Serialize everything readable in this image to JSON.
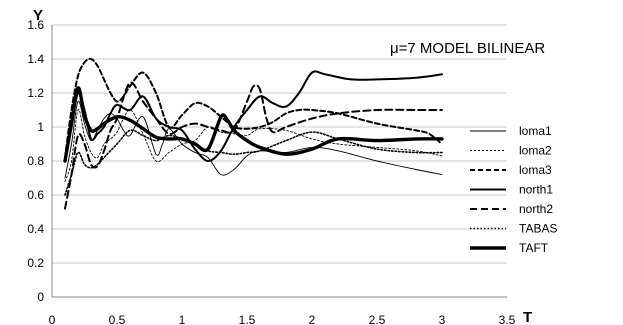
{
  "chart_data": {
    "type": "line",
    "title": "",
    "annotation": "μ=7  MODEL BILINEAR",
    "xlabel": "T",
    "ylabel": "Y",
    "xlim": [
      0,
      3.5
    ],
    "ylim": [
      0,
      1.6
    ],
    "xticks": [
      "0",
      "0.5",
      "1",
      "1.5",
      "2",
      "2.5",
      "3",
      "3.5"
    ],
    "yticks": [
      "0",
      "0.2",
      "0.4",
      "0.6",
      "0.8",
      "1",
      "1.2",
      "1.4",
      "1.6"
    ],
    "grid": "horizontal",
    "legend": "right",
    "series": [
      {
        "name": "loma1",
        "style": "thin-solid",
        "points": [
          [
            0.1,
            0.7
          ],
          [
            0.15,
            0.9
          ],
          [
            0.2,
            1.15
          ],
          [
            0.25,
            1.02
          ],
          [
            0.3,
            0.92
          ],
          [
            0.35,
            0.98
          ],
          [
            0.4,
            1.05
          ],
          [
            0.45,
            1.08
          ],
          [
            0.5,
            1.05
          ],
          [
            0.55,
            0.98
          ],
          [
            0.6,
            0.95
          ],
          [
            0.7,
            1.06
          ],
          [
            0.8,
            0.84
          ],
          [
            0.85,
            0.9
          ],
          [
            0.9,
            0.99
          ],
          [
            1.0,
            0.9
          ],
          [
            1.1,
            0.85
          ],
          [
            1.2,
            0.82
          ],
          [
            1.3,
            0.72
          ],
          [
            1.4,
            0.75
          ],
          [
            1.5,
            0.83
          ],
          [
            1.6,
            0.86
          ],
          [
            1.8,
            0.85
          ],
          [
            2.0,
            0.88
          ],
          [
            2.2,
            0.86
          ],
          [
            2.5,
            0.8
          ],
          [
            2.8,
            0.75
          ],
          [
            3.0,
            0.72
          ]
        ]
      },
      {
        "name": "loma2",
        "style": "thin-dotted",
        "points": [
          [
            0.1,
            0.68
          ],
          [
            0.15,
            0.8
          ],
          [
            0.2,
            1.1
          ],
          [
            0.25,
            0.95
          ],
          [
            0.3,
            0.85
          ],
          [
            0.35,
            0.82
          ],
          [
            0.4,
            0.9
          ],
          [
            0.45,
            0.93
          ],
          [
            0.5,
            0.97
          ],
          [
            0.6,
            1.1
          ],
          [
            0.7,
            0.96
          ],
          [
            0.8,
            0.8
          ],
          [
            0.9,
            0.85
          ],
          [
            1.0,
            0.9
          ],
          [
            1.1,
            0.92
          ],
          [
            1.2,
            1.0
          ],
          [
            1.3,
            0.97
          ],
          [
            1.4,
            0.96
          ],
          [
            1.5,
            0.95
          ],
          [
            1.6,
            0.99
          ],
          [
            1.8,
            0.98
          ],
          [
            2.0,
            0.93
          ],
          [
            2.2,
            0.9
          ],
          [
            2.5,
            0.88
          ],
          [
            2.8,
            0.86
          ],
          [
            3.0,
            0.83
          ]
        ]
      },
      {
        "name": "loma3",
        "style": "dashed",
        "points": [
          [
            0.1,
            0.82
          ],
          [
            0.15,
            1.1
          ],
          [
            0.2,
            1.3
          ],
          [
            0.25,
            1.38
          ],
          [
            0.3,
            1.4
          ],
          [
            0.35,
            1.36
          ],
          [
            0.4,
            1.28
          ],
          [
            0.45,
            1.2
          ],
          [
            0.5,
            1.15
          ],
          [
            0.55,
            1.18
          ],
          [
            0.6,
            1.24
          ],
          [
            0.7,
            1.32
          ],
          [
            0.8,
            1.2
          ],
          [
            0.9,
            1.0
          ],
          [
            1.0,
            1.07
          ],
          [
            1.1,
            1.14
          ],
          [
            1.2,
            1.12
          ],
          [
            1.3,
            1.06
          ],
          [
            1.4,
            1.0
          ],
          [
            1.5,
            0.99
          ],
          [
            1.6,
            1.0
          ],
          [
            1.7,
            1.03
          ],
          [
            1.8,
            1.08
          ],
          [
            1.9,
            1.1
          ],
          [
            2.0,
            1.1
          ],
          [
            2.2,
            1.08
          ],
          [
            2.5,
            1.02
          ],
          [
            2.8,
            0.98
          ],
          [
            2.9,
            0.96
          ],
          [
            3.0,
            0.9
          ]
        ]
      },
      {
        "name": "north1",
        "style": "solid",
        "points": [
          [
            0.1,
            0.82
          ],
          [
            0.15,
            1.0
          ],
          [
            0.2,
            1.2
          ],
          [
            0.25,
            1.1
          ],
          [
            0.3,
            0.93
          ],
          [
            0.35,
            0.96
          ],
          [
            0.4,
            1.0
          ],
          [
            0.45,
            1.08
          ],
          [
            0.5,
            1.13
          ],
          [
            0.6,
            1.1
          ],
          [
            0.7,
            1.18
          ],
          [
            0.8,
            1.05
          ],
          [
            0.9,
            1.0
          ],
          [
            1.0,
            0.98
          ],
          [
            1.1,
            0.87
          ],
          [
            1.2,
            0.8
          ],
          [
            1.3,
            0.86
          ],
          [
            1.4,
            1.0
          ],
          [
            1.5,
            1.1
          ],
          [
            1.6,
            1.18
          ],
          [
            1.7,
            1.14
          ],
          [
            1.8,
            1.12
          ],
          [
            1.9,
            1.2
          ],
          [
            2.0,
            1.32
          ],
          [
            2.1,
            1.31
          ],
          [
            2.3,
            1.28
          ],
          [
            2.5,
            1.28
          ],
          [
            2.8,
            1.29
          ],
          [
            3.0,
            1.31
          ]
        ]
      },
      {
        "name": "north2",
        "style": "dashed-long",
        "points": [
          [
            0.1,
            0.52
          ],
          [
            0.15,
            0.72
          ],
          [
            0.2,
            0.95
          ],
          [
            0.25,
            0.9
          ],
          [
            0.3,
            0.78
          ],
          [
            0.35,
            0.77
          ],
          [
            0.4,
            0.86
          ],
          [
            0.45,
            0.98
          ],
          [
            0.5,
            1.05
          ],
          [
            0.6,
            1.26
          ],
          [
            0.7,
            1.15
          ],
          [
            0.8,
            1.05
          ],
          [
            0.9,
            0.96
          ],
          [
            1.0,
            1.0
          ],
          [
            1.1,
            1.02
          ],
          [
            1.2,
            1.0
          ],
          [
            1.3,
            0.98
          ],
          [
            1.4,
            0.98
          ],
          [
            1.5,
            1.15
          ],
          [
            1.55,
            1.24
          ],
          [
            1.6,
            1.22
          ],
          [
            1.65,
            1.05
          ],
          [
            1.7,
            0.97
          ],
          [
            1.8,
            1.0
          ],
          [
            2.0,
            1.05
          ],
          [
            2.2,
            1.08
          ],
          [
            2.5,
            1.1
          ],
          [
            2.8,
            1.1
          ],
          [
            3.0,
            1.1
          ]
        ]
      },
      {
        "name": "TABAS",
        "style": "dotted",
        "points": [
          [
            0.1,
            0.6
          ],
          [
            0.15,
            0.72
          ],
          [
            0.2,
            0.85
          ],
          [
            0.25,
            0.78
          ],
          [
            0.3,
            0.76
          ],
          [
            0.35,
            0.78
          ],
          [
            0.4,
            0.82
          ],
          [
            0.5,
            0.9
          ],
          [
            0.6,
            0.98
          ],
          [
            0.7,
            0.95
          ],
          [
            0.8,
            0.92
          ],
          [
            0.9,
            0.95
          ],
          [
            1.0,
            0.93
          ],
          [
            1.1,
            0.9
          ],
          [
            1.2,
            0.86
          ],
          [
            1.3,
            0.85
          ],
          [
            1.4,
            0.84
          ],
          [
            1.5,
            0.85
          ],
          [
            1.6,
            0.86
          ],
          [
            1.8,
            0.92
          ],
          [
            2.0,
            0.97
          ],
          [
            2.2,
            0.93
          ],
          [
            2.5,
            0.87
          ],
          [
            2.8,
            0.85
          ],
          [
            3.0,
            0.85
          ]
        ]
      },
      {
        "name": "TAFT",
        "style": "thick-solid",
        "points": [
          [
            0.1,
            0.8
          ],
          [
            0.15,
            1.02
          ],
          [
            0.2,
            1.23
          ],
          [
            0.25,
            1.07
          ],
          [
            0.3,
            0.98
          ],
          [
            0.35,
            0.99
          ],
          [
            0.4,
            1.02
          ],
          [
            0.5,
            1.06
          ],
          [
            0.6,
            1.04
          ],
          [
            0.7,
            0.99
          ],
          [
            0.8,
            0.94
          ],
          [
            0.9,
            0.93
          ],
          [
            1.0,
            0.93
          ],
          [
            1.1,
            0.9
          ],
          [
            1.2,
            0.87
          ],
          [
            1.3,
            1.06
          ],
          [
            1.35,
            1.04
          ],
          [
            1.4,
            0.98
          ],
          [
            1.5,
            0.92
          ],
          [
            1.6,
            0.88
          ],
          [
            1.8,
            0.84
          ],
          [
            2.0,
            0.87
          ],
          [
            2.2,
            0.93
          ],
          [
            2.5,
            0.92
          ],
          [
            2.8,
            0.93
          ],
          [
            3.0,
            0.93
          ]
        ]
      }
    ]
  }
}
